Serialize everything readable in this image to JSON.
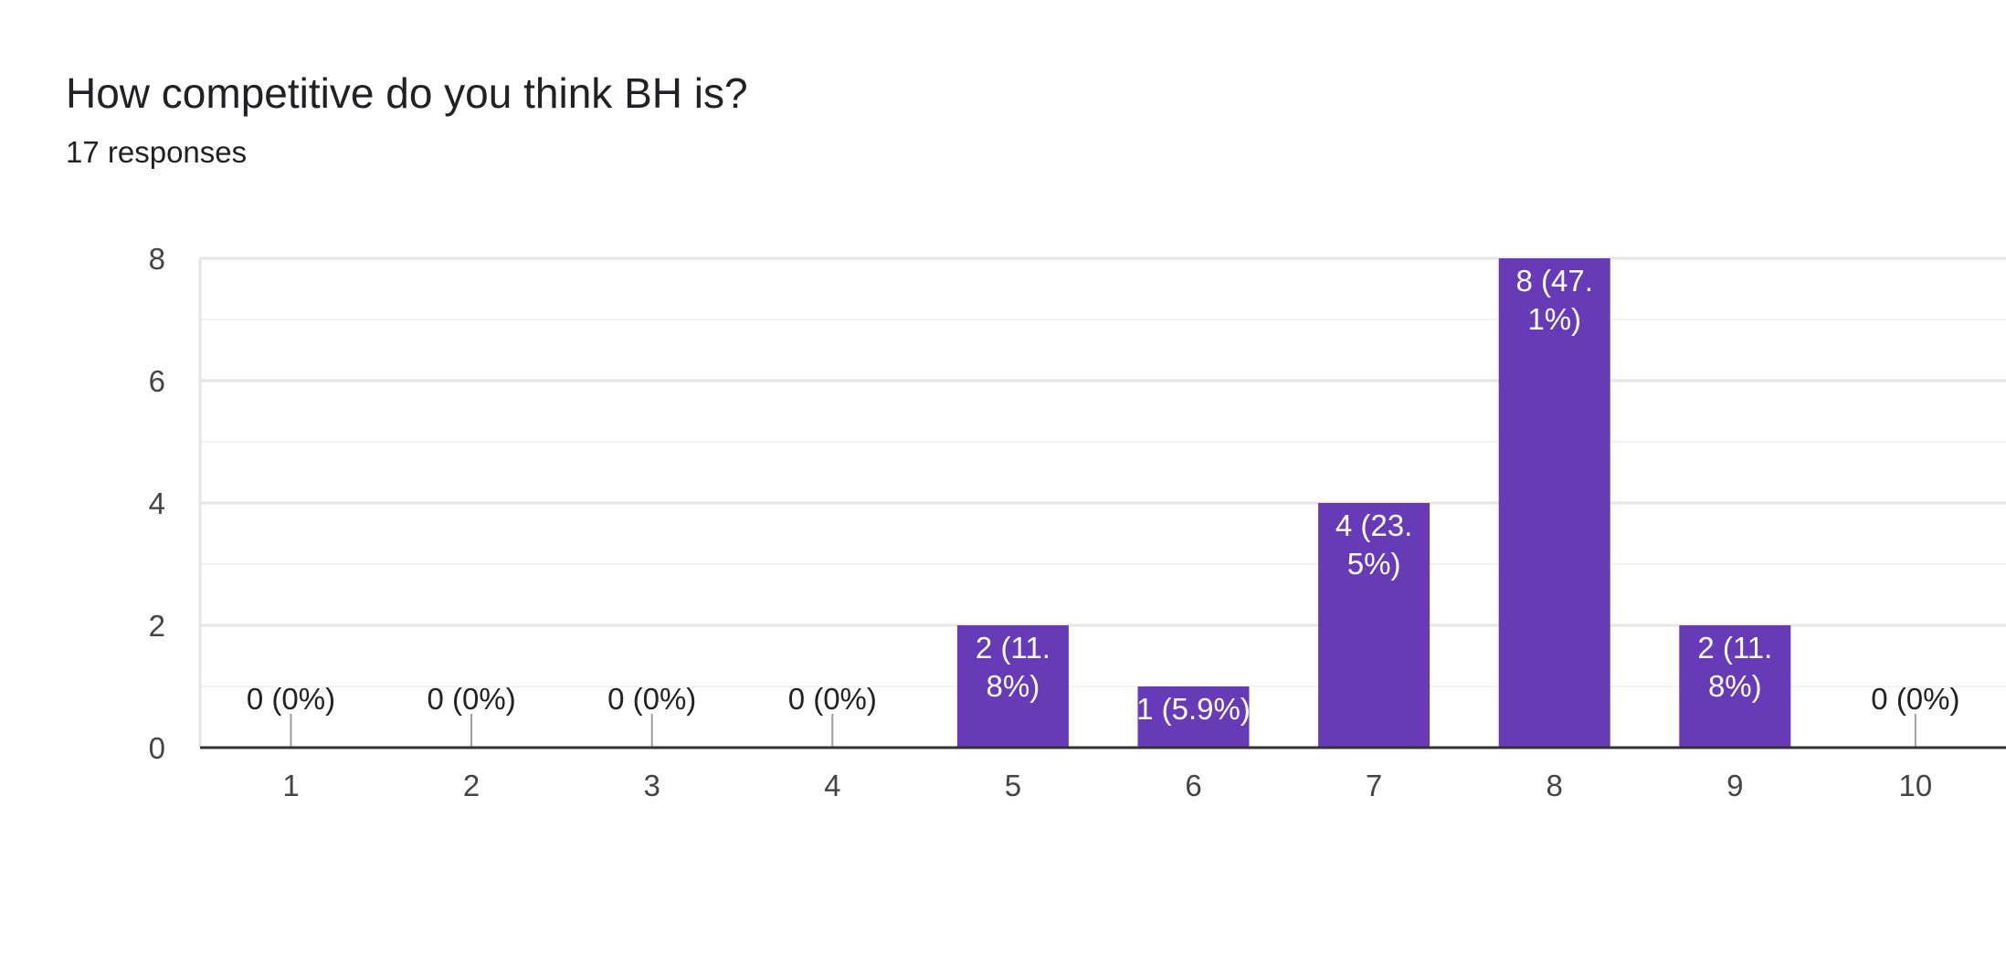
{
  "header": {
    "title": "How competitive do you think BH is?",
    "subtitle": "17 responses"
  },
  "colors": {
    "bar": "#673ab7",
    "grid_major": "#e6e6e6",
    "grid_minor": "#f3f3f3",
    "axis": "#333333",
    "tick_text": "#444444",
    "label_inside": "#ffffff",
    "label_outside": "#222222",
    "leader": "#9e9e9e"
  },
  "chart_data": {
    "type": "bar",
    "title": "How competitive do you think BH is?",
    "subtitle": "17 responses",
    "categories": [
      "1",
      "2",
      "3",
      "4",
      "5",
      "6",
      "7",
      "8",
      "9",
      "10"
    ],
    "values": [
      0,
      0,
      0,
      0,
      2,
      1,
      4,
      8,
      2,
      0
    ],
    "data_labels": [
      [
        "0 (0%)"
      ],
      [
        "0 (0%)"
      ],
      [
        "0 (0%)"
      ],
      [
        "0 (0%)"
      ],
      [
        "2 (11.",
        "8%)"
      ],
      [
        "1 (5.9%)"
      ],
      [
        "4 (23.",
        "5%)"
      ],
      [
        "8 (47.",
        "1%)"
      ],
      [
        "2 (11.",
        "8%)"
      ],
      [
        "0 (0%)"
      ]
    ],
    "y_ticks": [
      "0",
      "2",
      "4",
      "6",
      "8"
    ],
    "ylim": [
      0,
      8
    ],
    "xlabel": "",
    "ylabel": "",
    "grid": true,
    "legend": "none"
  }
}
